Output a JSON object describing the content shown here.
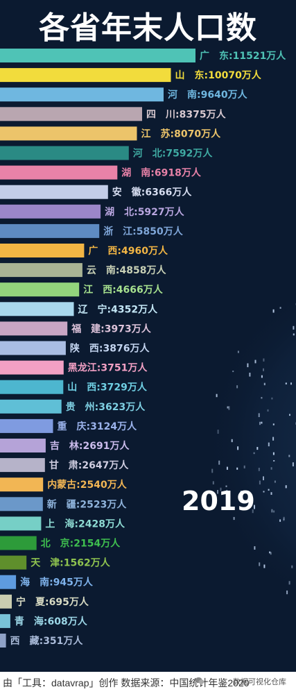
{
  "title": "各省年末人口数",
  "year": "2019",
  "footer": "由「工具：datavrap」创作 数据来源：中国统计年鉴2020",
  "watermark": "数据可视化仓库",
  "chart_data": {
    "type": "bar",
    "orientation": "horizontal",
    "unit": "万人",
    "categories": [
      "广　东",
      "山　东",
      "河　南",
      "四　川",
      "江　苏",
      "河　北",
      "湖　南",
      "安　徽",
      "湖　北",
      "浙　江",
      "广　西",
      "云　南",
      "江　西",
      "辽　宁",
      "福　建",
      "陕　西",
      "黑龙江",
      "山　西",
      "贵　州",
      "重　庆",
      "吉　林",
      "甘　肃",
      "内蒙古",
      "新　疆",
      "上　海",
      "北　京",
      "天　津",
      "海　南",
      "宁　夏",
      "青　海",
      "西　藏"
    ],
    "values": [
      11521,
      10070,
      9640,
      8375,
      8070,
      7592,
      6918,
      6366,
      5927,
      5850,
      4960,
      4858,
      4666,
      4352,
      3973,
      3876,
      3751,
      3729,
      3623,
      3124,
      2691,
      2647,
      2540,
      2523,
      2428,
      2154,
      1562,
      945,
      695,
      608,
      351
    ],
    "colors": [
      "#4fc3b6",
      "#f2dc3c",
      "#6fb7e0",
      "#b9a6b0",
      "#ecc46a",
      "#2a8a84",
      "#e882a8",
      "#c3cde8",
      "#9b86c9",
      "#5e8bc2",
      "#f2b544",
      "#a9b394",
      "#93d47c",
      "#a9d8ee",
      "#c9a6c4",
      "#a9bde3",
      "#f2a0c4",
      "#4db6cf",
      "#5fbfd6",
      "#7f9be0",
      "#b5a3d8",
      "#b6b3c9",
      "#f2b654",
      "#6b98c9",
      "#76cfc6",
      "#2d9b3a",
      "#5f8f2c",
      "#5e9be0",
      "#c9ccb0",
      "#79c3d8",
      "#8fa2c7"
    ],
    "label_colors": [
      "#4fc3b6",
      "#f2dc3c",
      "#6fb7e0",
      "#d8c9d0",
      "#ecc46a",
      "#3faaa2",
      "#e882a8",
      "#d6ddf0",
      "#b9a6e0",
      "#7fa6d8",
      "#f2b544",
      "#c9d1b6",
      "#a6e08e",
      "#c3e6f5",
      "#ddc3da",
      "#c3d4ef",
      "#f2a0c4",
      "#6fcfe3",
      "#7fd0e3",
      "#9bb3ec",
      "#cbbcec",
      "#cfcde0",
      "#f2b654",
      "#8fb3db",
      "#8fdcd4",
      "#3fbf4f",
      "#8fc34f",
      "#7fb3ec",
      "#d8dbc3",
      "#9bd6e6",
      "#aabbd9"
    ]
  }
}
